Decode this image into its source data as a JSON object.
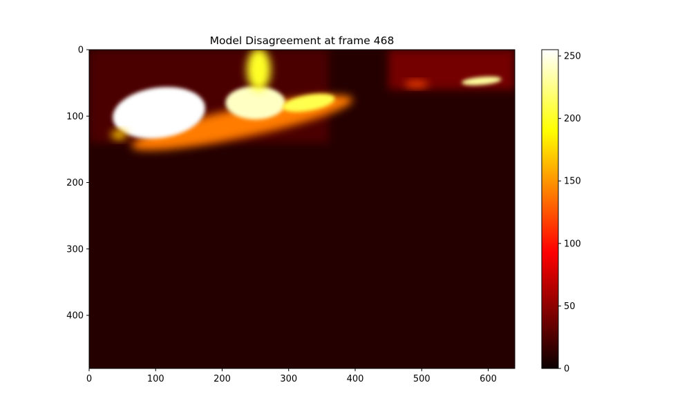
{
  "chart_data": {
    "type": "heatmap",
    "title": "Model Disagreement at frame 468",
    "xlabel": "",
    "ylabel": "",
    "colormap": "hot",
    "image_width": 640,
    "image_height": 480,
    "xlim": [
      0,
      640
    ],
    "ylim": [
      480,
      0
    ],
    "x_ticks": [
      0,
      100,
      200,
      300,
      400,
      500,
      600
    ],
    "y_ticks": [
      0,
      100,
      200,
      300,
      400
    ],
    "colorbar": {
      "range": [
        0,
        255
      ],
      "ticks": [
        0,
        50,
        100,
        150,
        200,
        250
      ]
    },
    "background_value": 10,
    "regions": [
      {
        "name": "upper-left-wash",
        "kind": "rect",
        "x0": 0,
        "y0": 0,
        "x1": 360,
        "y1": 140,
        "value": 25
      },
      {
        "name": "upper-right-wash",
        "kind": "rect",
        "x0": 450,
        "y0": 0,
        "x1": 640,
        "y1": 60,
        "value": 40
      },
      {
        "name": "diagonal-band",
        "kind": "ellipse",
        "cx": 230,
        "cy": 110,
        "rx": 170,
        "ry": 22,
        "rotate": -12,
        "value": 140
      },
      {
        "name": "hotspot-main",
        "kind": "ellipse",
        "cx": 105,
        "cy": 95,
        "rx": 70,
        "ry": 38,
        "rotate": -8,
        "value": 255
      },
      {
        "name": "hotspot-mid",
        "kind": "ellipse",
        "cx": 250,
        "cy": 80,
        "rx": 45,
        "ry": 25,
        "rotate": 0,
        "value": 240
      },
      {
        "name": "hotspot-right",
        "kind": "ellipse",
        "cx": 330,
        "cy": 80,
        "rx": 40,
        "ry": 12,
        "rotate": -10,
        "value": 210
      },
      {
        "name": "vertical-top",
        "kind": "ellipse",
        "cx": 255,
        "cy": 30,
        "rx": 18,
        "ry": 32,
        "rotate": 0,
        "value": 200
      },
      {
        "name": "far-right-streak",
        "kind": "ellipse",
        "cx": 590,
        "cy": 47,
        "rx": 30,
        "ry": 6,
        "rotate": -5,
        "value": 230
      },
      {
        "name": "mid-right-streak",
        "kind": "ellipse",
        "cx": 492,
        "cy": 52,
        "rx": 18,
        "ry": 5,
        "rotate": 0,
        "value": 120
      },
      {
        "name": "lower-left-blip",
        "kind": "ellipse",
        "cx": 45,
        "cy": 128,
        "rx": 12,
        "ry": 7,
        "rotate": 0,
        "value": 170
      }
    ]
  }
}
